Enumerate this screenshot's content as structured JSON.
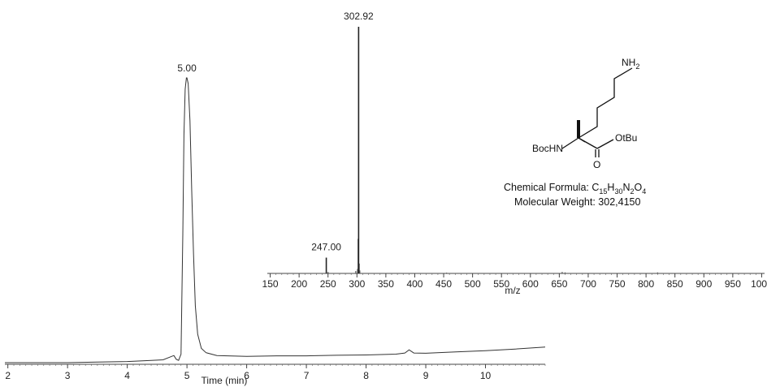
{
  "chart_data": [
    {
      "type": "line",
      "xlabel": "Time (min)",
      "x_ticks": [
        2,
        3,
        4,
        5,
        6,
        7,
        8,
        9,
        10
      ],
      "xlim": [
        1.95,
        11.0
      ],
      "peaks": [
        {
          "x": 5.0,
          "label": "5.00"
        }
      ],
      "series": [
        {
          "x": [
            1.95,
            2.5,
            3.0,
            3.5,
            4.0,
            4.4,
            4.6,
            4.78,
            4.82,
            4.86,
            4.9,
            4.93,
            4.95,
            4.97,
            4.99,
            5.0,
            5.02,
            5.05,
            5.08,
            5.11,
            5.14,
            5.18,
            5.24,
            5.32,
            5.5,
            6.0,
            6.5,
            7.0,
            7.5,
            8.0,
            8.5,
            8.65,
            8.72,
            8.8,
            9.0,
            9.5,
            10.0,
            10.5,
            11.0
          ],
          "y": [
            0.0,
            0.0,
            0.0,
            0.002,
            0.004,
            0.008,
            0.01,
            0.025,
            0.012,
            0.008,
            0.03,
            0.45,
            0.8,
            0.96,
            1.0,
            1.0,
            0.98,
            0.85,
            0.6,
            0.38,
            0.2,
            0.1,
            0.05,
            0.035,
            0.025,
            0.022,
            0.024,
            0.024,
            0.026,
            0.027,
            0.03,
            0.034,
            0.045,
            0.034,
            0.033,
            0.038,
            0.042,
            0.048,
            0.055
          ]
        }
      ]
    },
    {
      "type": "bar",
      "xlabel": "m/z",
      "x_ticks": [
        150,
        200,
        250,
        300,
        350,
        400,
        450,
        500,
        550,
        600,
        650,
        700,
        750,
        800,
        850,
        900,
        950,
        1000
      ],
      "xlim": [
        145,
        1005
      ],
      "peaks": [
        {
          "x": 247.0,
          "label": "247.00",
          "intensity": 0.064
        },
        {
          "x": 302.92,
          "label": "302.92",
          "intensity": 1.0
        }
      ],
      "minor_peaks": [
        {
          "x": 298,
          "intensity": 0.01
        },
        {
          "x": 301,
          "intensity": 0.018
        },
        {
          "x": 302,
          "intensity": 0.14
        },
        {
          "x": 304,
          "intensity": 0.04
        },
        {
          "x": 305,
          "intensity": 0.012
        },
        {
          "x": 250,
          "intensity": 0.006
        },
        {
          "x": 455,
          "intensity": 0.003
        },
        {
          "x": 655,
          "intensity": 0.006
        },
        {
          "x": 660,
          "intensity": 0.004
        },
        {
          "x": 820,
          "intensity": 0.004
        }
      ]
    }
  ],
  "structure": {
    "amine": "NH",
    "amine_sub": "2",
    "carbamate": "BocHN",
    "ester": "OtBu",
    "carbonyl_o": "O"
  },
  "info": {
    "formula_prefix": "Chemical Formula: C",
    "formula": [
      {
        "t": "15",
        "sub": true
      },
      {
        "t": "H",
        "sub": false
      },
      {
        "t": "30",
        "sub": true
      },
      {
        "t": "N",
        "sub": false
      },
      {
        "t": "2",
        "sub": true
      },
      {
        "t": "O",
        "sub": false
      },
      {
        "t": "4",
        "sub": true
      }
    ],
    "mw": "Molecular Weight: 302,4150"
  },
  "colors": {
    "line": "#333333",
    "axis": "#444444",
    "text": "#222222"
  }
}
